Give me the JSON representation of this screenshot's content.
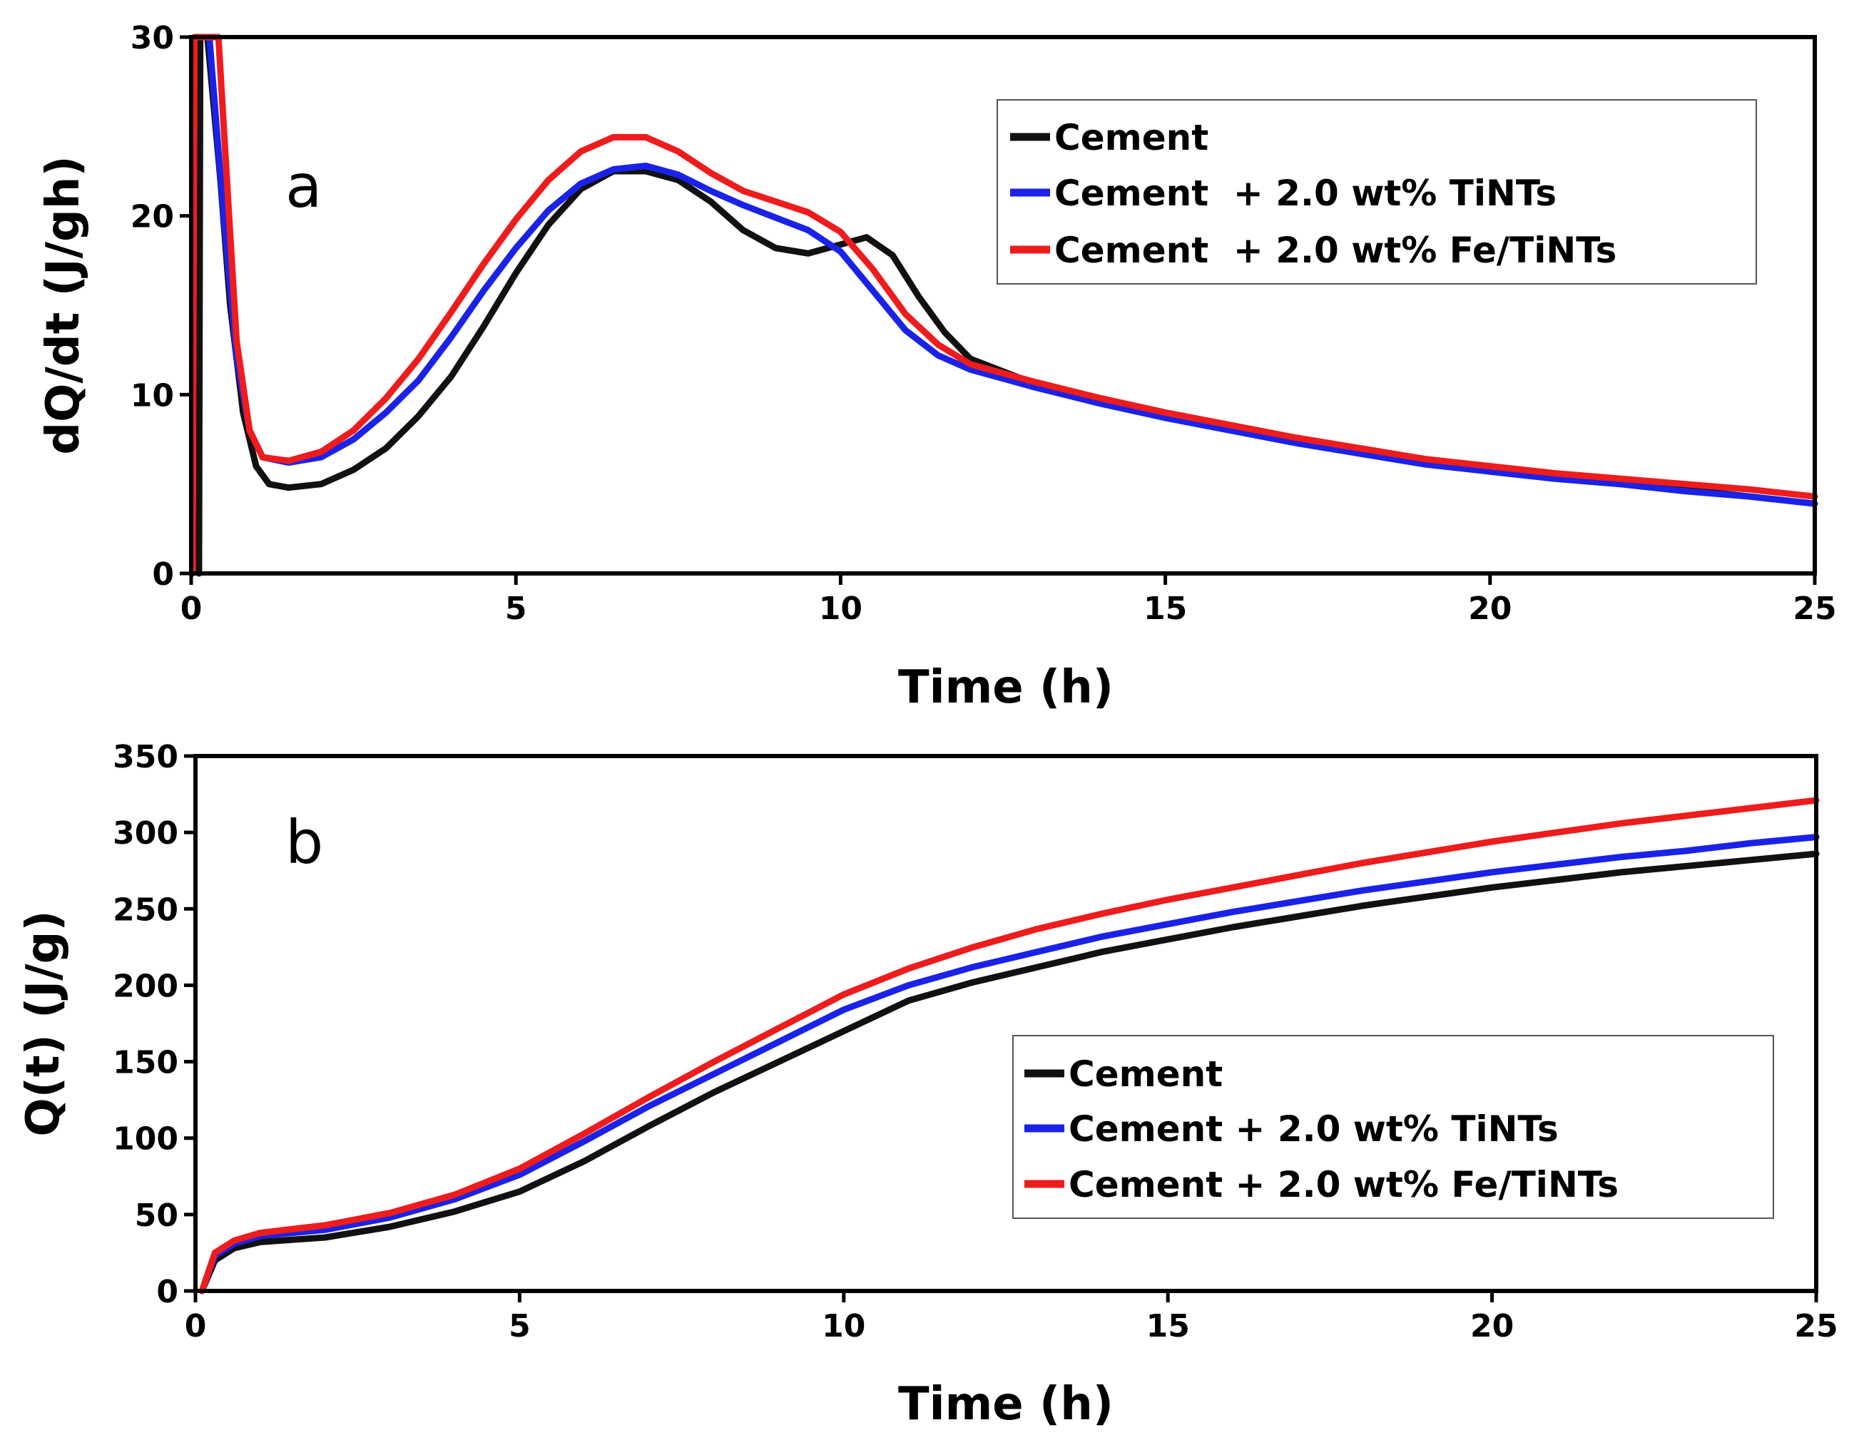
{
  "chart_data": [
    {
      "panel": "a",
      "type": "line",
      "panel_label": "a",
      "xlabel": "Time (h)",
      "ylabel": "dQ/dt (J/gh)",
      "xlim": [
        0,
        25
      ],
      "ylim": [
        0,
        30
      ],
      "xticks": [
        0,
        5,
        10,
        15,
        20,
        25
      ],
      "yticks": [
        0,
        10,
        20,
        30
      ],
      "legend_position": "top-right",
      "series": [
        {
          "name": "Cement",
          "color": "#111111",
          "points": [
            [
              0.12,
              0
            ],
            [
              0.14,
              30
            ],
            [
              0.25,
              30
            ],
            [
              0.45,
              22
            ],
            [
              0.6,
              15
            ],
            [
              0.8,
              9
            ],
            [
              1.0,
              6
            ],
            [
              1.2,
              5
            ],
            [
              1.5,
              4.8
            ],
            [
              2.0,
              5
            ],
            [
              2.5,
              5.8
            ],
            [
              3.0,
              7
            ],
            [
              3.5,
              8.8
            ],
            [
              4.0,
              11
            ],
            [
              4.5,
              13.8
            ],
            [
              5.0,
              16.8
            ],
            [
              5.5,
              19.5
            ],
            [
              6.0,
              21.5
            ],
            [
              6.5,
              22.5
            ],
            [
              7.0,
              22.5
            ],
            [
              7.5,
              22
            ],
            [
              8.0,
              20.8
            ],
            [
              8.5,
              19.2
            ],
            [
              9.0,
              18.2
            ],
            [
              9.5,
              17.9
            ],
            [
              10.0,
              18.4
            ],
            [
              10.4,
              18.8
            ],
            [
              10.8,
              17.8
            ],
            [
              11.2,
              15.5
            ],
            [
              11.6,
              13.5
            ],
            [
              12.0,
              12
            ],
            [
              13.0,
              10.6
            ],
            [
              14.0,
              9.6
            ],
            [
              15.0,
              8.8
            ],
            [
              16.0,
              8.1
            ],
            [
              17.0,
              7.4
            ],
            [
              18.0,
              6.8
            ],
            [
              19.0,
              6.2
            ],
            [
              20.0,
              5.7
            ],
            [
              21.0,
              5.3
            ],
            [
              22.0,
              5
            ],
            [
              23.0,
              4.7
            ],
            [
              24.0,
              4.3
            ],
            [
              25.0,
              3.9
            ]
          ]
        },
        {
          "name": "Cement  + 2.0 wt% TiNTs",
          "color": "#1a22e8",
          "points": [
            [
              0.28,
              30
            ],
            [
              0.5,
              20
            ],
            [
              0.7,
              12
            ],
            [
              0.9,
              8
            ],
            [
              1.1,
              6.5
            ],
            [
              1.5,
              6.2
            ],
            [
              2.0,
              6.5
            ],
            [
              2.5,
              7.5
            ],
            [
              3.0,
              9
            ],
            [
              3.5,
              10.8
            ],
            [
              4.0,
              13.2
            ],
            [
              4.5,
              15.8
            ],
            [
              5.0,
              18.2
            ],
            [
              5.5,
              20.3
            ],
            [
              6.0,
              21.8
            ],
            [
              6.5,
              22.6
            ],
            [
              7.0,
              22.8
            ],
            [
              7.5,
              22.3
            ],
            [
              8.0,
              21.4
            ],
            [
              8.5,
              20.6
            ],
            [
              9.0,
              19.9
            ],
            [
              9.5,
              19.2
            ],
            [
              10.0,
              18
            ],
            [
              10.5,
              15.8
            ],
            [
              11.0,
              13.6
            ],
            [
              11.5,
              12.2
            ],
            [
              12.0,
              11.4
            ],
            [
              13.0,
              10.4
            ],
            [
              14.0,
              9.5
            ],
            [
              15.0,
              8.7
            ],
            [
              16.0,
              8
            ],
            [
              17.0,
              7.3
            ],
            [
              18.0,
              6.7
            ],
            [
              19.0,
              6.1
            ],
            [
              20.0,
              5.7
            ],
            [
              21.0,
              5.3
            ],
            [
              22.0,
              5
            ],
            [
              23.0,
              4.6
            ],
            [
              24.0,
              4.3
            ],
            [
              25.0,
              3.9
            ]
          ]
        },
        {
          "name": "Cement  + 2.0 wt% Fe/TiNTs",
          "color": "#ee1c1c",
          "points": [
            [
              0.02,
              0
            ],
            [
              0.05,
              30
            ],
            [
              0.42,
              30
            ],
            [
              0.55,
              22
            ],
            [
              0.7,
              13
            ],
            [
              0.9,
              8
            ],
            [
              1.1,
              6.5
            ],
            [
              1.5,
              6.3
            ],
            [
              2.0,
              6.8
            ],
            [
              2.5,
              8
            ],
            [
              3.0,
              9.8
            ],
            [
              3.5,
              12
            ],
            [
              4.0,
              14.6
            ],
            [
              4.5,
              17.3
            ],
            [
              5.0,
              19.8
            ],
            [
              5.5,
              22
            ],
            [
              6.0,
              23.6
            ],
            [
              6.5,
              24.4
            ],
            [
              7.0,
              24.4
            ],
            [
              7.5,
              23.6
            ],
            [
              8.0,
              22.4
            ],
            [
              8.5,
              21.4
            ],
            [
              9.0,
              20.8
            ],
            [
              9.5,
              20.2
            ],
            [
              10.0,
              19.1
            ],
            [
              10.5,
              17
            ],
            [
              11.0,
              14.5
            ],
            [
              11.5,
              12.8
            ],
            [
              12.0,
              11.7
            ],
            [
              13.0,
              10.7
            ],
            [
              14.0,
              9.8
            ],
            [
              15.0,
              9
            ],
            [
              16.0,
              8.3
            ],
            [
              17.0,
              7.6
            ],
            [
              18.0,
              7
            ],
            [
              19.0,
              6.4
            ],
            [
              20.0,
              6
            ],
            [
              21.0,
              5.6
            ],
            [
              22.0,
              5.3
            ],
            [
              23.0,
              5
            ],
            [
              24.0,
              4.7
            ],
            [
              25.0,
              4.3
            ]
          ]
        }
      ]
    },
    {
      "panel": "b",
      "type": "line",
      "panel_label": "b",
      "xlabel": "Time (h)",
      "ylabel": "Q(t) (J/g)",
      "xlim": [
        0,
        25
      ],
      "ylim": [
        0,
        350
      ],
      "xticks": [
        0,
        5,
        10,
        15,
        20,
        25
      ],
      "yticks": [
        0,
        50,
        100,
        150,
        200,
        250,
        300,
        350
      ],
      "legend_position": "bottom-right",
      "series": [
        {
          "name": "Cement",
          "color": "#111111",
          "points": [
            [
              0.1,
              0
            ],
            [
              0.3,
              20
            ],
            [
              0.6,
              28
            ],
            [
              1,
              32
            ],
            [
              2,
              35
            ],
            [
              3,
              42
            ],
            [
              4,
              52
            ],
            [
              5,
              65
            ],
            [
              6,
              85
            ],
            [
              7,
              108
            ],
            [
              8,
              130
            ],
            [
              9,
              150
            ],
            [
              10,
              170
            ],
            [
              11,
              190
            ],
            [
              12,
              202
            ],
            [
              13,
              212
            ],
            [
              14,
              222
            ],
            [
              15,
              230
            ],
            [
              16,
              238
            ],
            [
              17,
              245
            ],
            [
              18,
              252
            ],
            [
              19,
              258
            ],
            [
              20,
              264
            ],
            [
              21,
              269
            ],
            [
              22,
              274
            ],
            [
              23,
              278
            ],
            [
              24,
              282
            ],
            [
              25,
              286
            ]
          ]
        },
        {
          "name": "Cement + 2.0 wt% TiNTs",
          "color": "#1a22e8",
          "points": [
            [
              0.1,
              0
            ],
            [
              0.3,
              23
            ],
            [
              0.6,
              31
            ],
            [
              1,
              36
            ],
            [
              2,
              40
            ],
            [
              3,
              48
            ],
            [
              4,
              60
            ],
            [
              5,
              76
            ],
            [
              6,
              98
            ],
            [
              7,
              121
            ],
            [
              8,
              142
            ],
            [
              9,
              163
            ],
            [
              10,
              184
            ],
            [
              11,
              200
            ],
            [
              12,
              212
            ],
            [
              13,
              222
            ],
            [
              14,
              232
            ],
            [
              15,
              240
            ],
            [
              16,
              248
            ],
            [
              17,
              255
            ],
            [
              18,
              262
            ],
            [
              19,
              268
            ],
            [
              20,
              274
            ],
            [
              21,
              279
            ],
            [
              22,
              284
            ],
            [
              23,
              288
            ],
            [
              24,
              293
            ],
            [
              25,
              297
            ]
          ]
        },
        {
          "name": "Cement + 2.0 wt% Fe/TiNTs",
          "color": "#ee1c1c",
          "points": [
            [
              0.1,
              0
            ],
            [
              0.3,
              25
            ],
            [
              0.6,
              33
            ],
            [
              1,
              38
            ],
            [
              2,
              43
            ],
            [
              3,
              51
            ],
            [
              4,
              63
            ],
            [
              5,
              80
            ],
            [
              6,
              103
            ],
            [
              7,
              127
            ],
            [
              8,
              150
            ],
            [
              9,
              172
            ],
            [
              10,
              194
            ],
            [
              11,
              211
            ],
            [
              12,
              225
            ],
            [
              13,
              237
            ],
            [
              14,
              247
            ],
            [
              15,
              256
            ],
            [
              16,
              264
            ],
            [
              17,
              272
            ],
            [
              18,
              280
            ],
            [
              19,
              287
            ],
            [
              20,
              294
            ],
            [
              21,
              300
            ],
            [
              22,
              306
            ],
            [
              23,
              311
            ],
            [
              24,
              316
            ],
            [
              25,
              321
            ]
          ]
        }
      ]
    }
  ]
}
